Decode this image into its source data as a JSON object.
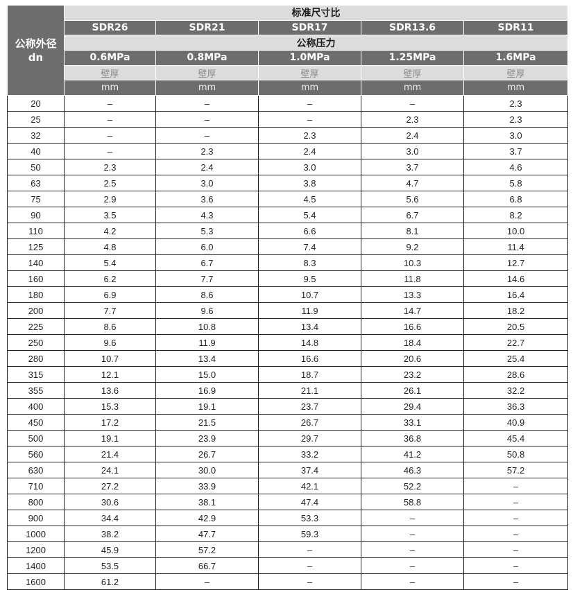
{
  "header": {
    "dn_label": "公称外径",
    "dn_unit": "dn",
    "sdr_title": "标准尺寸比",
    "sdr": [
      "SDR26",
      "SDR21",
      "SDR17",
      "SDR13.6",
      "SDR11"
    ],
    "pressure_title": "公称压力",
    "pressure": [
      "0.6MPa",
      "0.8MPa",
      "1.0MPa",
      "1.25MPa",
      "1.6MPa"
    ],
    "wall_label": "壁厚",
    "unit": "mm"
  },
  "rows": [
    [
      "20",
      "–",
      "–",
      "–",
      "–",
      "2.3"
    ],
    [
      "25",
      "–",
      "–",
      "–",
      "2.3",
      "2.3"
    ],
    [
      "32",
      "–",
      "–",
      "2.3",
      "2.4",
      "3.0"
    ],
    [
      "40",
      "–",
      "2.3",
      "2.4",
      "3.0",
      "3.7"
    ],
    [
      "50",
      "2.3",
      "2.4",
      "3.0",
      "3.7",
      "4.6"
    ],
    [
      "63",
      "2.5",
      "3.0",
      "3.8",
      "4.7",
      "5.8"
    ],
    [
      "75",
      "2.9",
      "3.6",
      "4.5",
      "5.6",
      "6.8"
    ],
    [
      "90",
      "3.5",
      "4.3",
      "5.4",
      "6.7",
      "8.2"
    ],
    [
      "110",
      "4.2",
      "5.3",
      "6.6",
      "8.1",
      "10.0"
    ],
    [
      "125",
      "4.8",
      "6.0",
      "7.4",
      "9.2",
      "11.4"
    ],
    [
      "140",
      "5.4",
      "6.7",
      "8.3",
      "10.3",
      "12.7"
    ],
    [
      "160",
      "6.2",
      "7.7",
      "9.5",
      "11.8",
      "14.6"
    ],
    [
      "180",
      "6.9",
      "8.6",
      "10.7",
      "13.3",
      "16.4"
    ],
    [
      "200",
      "7.7",
      "9.6",
      "11.9",
      "14.7",
      "18.2"
    ],
    [
      "225",
      "8.6",
      "10.8",
      "13.4",
      "16.6",
      "20.5"
    ],
    [
      "250",
      "9.6",
      "11.9",
      "14.8",
      "18.4",
      "22.7"
    ],
    [
      "280",
      "10.7",
      "13.4",
      "16.6",
      "20.6",
      "25.4"
    ],
    [
      "315",
      "12.1",
      "15.0",
      "18.7",
      "23.2",
      "28.6"
    ],
    [
      "355",
      "13.6",
      "16.9",
      "21.1",
      "26.1",
      "32.2"
    ],
    [
      "400",
      "15.3",
      "19.1",
      "23.7",
      "29.4",
      "36.3"
    ],
    [
      "450",
      "17.2",
      "21.5",
      "26.7",
      "33.1",
      "40.9"
    ],
    [
      "500",
      "19.1",
      "23.9",
      "29.7",
      "36.8",
      "45.4"
    ],
    [
      "560",
      "21.4",
      "26.7",
      "33.2",
      "41.2",
      "50.8"
    ],
    [
      "630",
      "24.1",
      "30.0",
      "37.4",
      "46.3",
      "57.2"
    ],
    [
      "710",
      "27.2",
      "33.9",
      "42.1",
      "52.2",
      "–"
    ],
    [
      "800",
      "30.6",
      "38.1",
      "47.4",
      "58.8",
      "–"
    ],
    [
      "900",
      "34.4",
      "42.9",
      "53.3",
      "–",
      "–"
    ],
    [
      "1000",
      "38.2",
      "47.7",
      "59.3",
      "–",
      "–"
    ],
    [
      "1200",
      "45.9",
      "57.2",
      "–",
      "–",
      "–"
    ],
    [
      "1400",
      "53.5",
      "66.7",
      "–",
      "–",
      "–"
    ],
    [
      "1600",
      "61.2",
      "–",
      "–",
      "–",
      "–"
    ]
  ]
}
